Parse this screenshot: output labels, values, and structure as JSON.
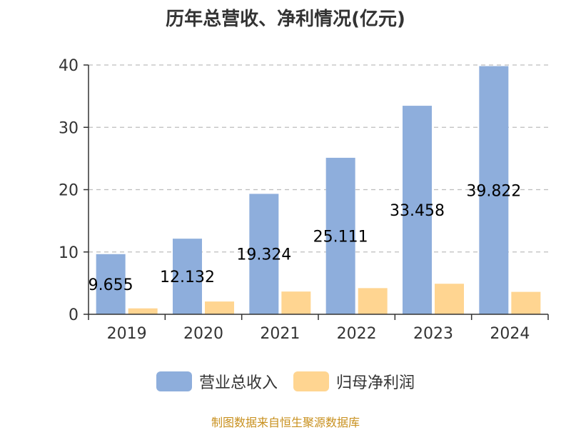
{
  "colors": {
    "revenue": "#8eaedc",
    "profit": "#ffd591",
    "grid": "#bdbdbd",
    "axis": "#333333"
  },
  "source_text": "制图数据来自恒生聚源数据库",
  "chart_data": {
    "type": "bar",
    "title": "历年总营收、净利情况(亿元)",
    "categories": [
      "2019",
      "2020",
      "2021",
      "2022",
      "2023",
      "2024"
    ],
    "series": [
      {
        "name": "营业总收入",
        "values": [
          9.655,
          12.132,
          19.324,
          25.111,
          33.458,
          39.822
        ],
        "labels": [
          "9.655",
          "12.132",
          "19.324",
          "25.111",
          "33.458",
          "39.822"
        ]
      },
      {
        "name": "归母净利润",
        "values": [
          0.95,
          2.05,
          3.65,
          4.2,
          4.9,
          3.6
        ]
      }
    ],
    "ylim": [
      0,
      40
    ],
    "yticks": [
      "0",
      "10",
      "20",
      "30",
      "40"
    ],
    "grid": true,
    "legend": "bottom"
  }
}
